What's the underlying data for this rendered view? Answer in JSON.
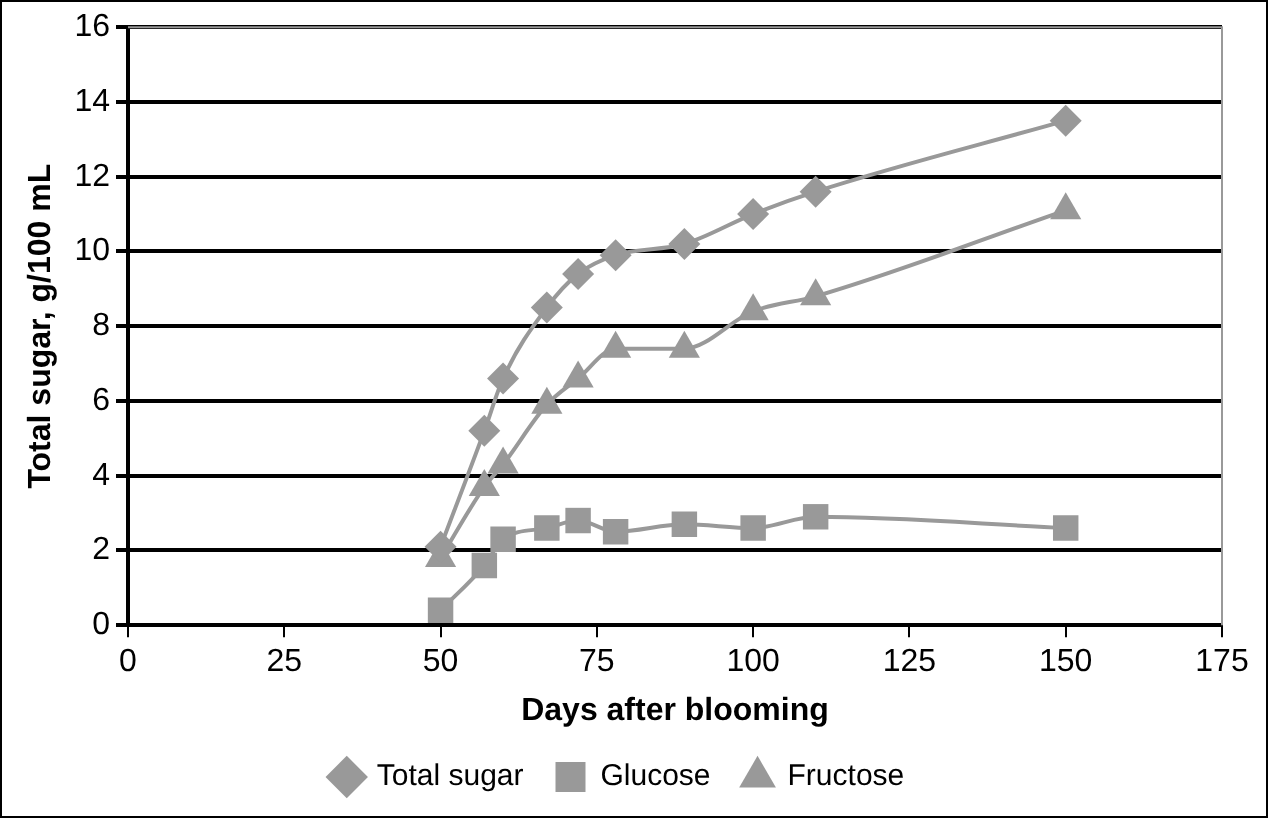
{
  "chart_data": {
    "type": "line",
    "xlabel": "Days after blooming",
    "ylabel": "Total sugar, g/100 mL",
    "x": [
      50,
      57,
      60,
      67,
      72,
      78,
      89,
      100,
      110,
      150
    ],
    "series": [
      {
        "name": "Total sugar",
        "color": "#999999",
        "marker": "diamond",
        "values": [
          2.1,
          5.2,
          6.6,
          8.5,
          9.4,
          9.9,
          10.2,
          11.0,
          11.6,
          13.5
        ]
      },
      {
        "name": "Glucose",
        "color": "#999999",
        "marker": "square",
        "values": [
          0.4,
          1.6,
          2.3,
          2.6,
          2.8,
          2.5,
          2.7,
          2.6,
          2.9,
          2.6
        ]
      },
      {
        "name": "Fructose",
        "color": "#999999",
        "marker": "triangle",
        "values": [
          1.8,
          3.7,
          4.3,
          5.9,
          6.6,
          7.4,
          7.4,
          8.4,
          8.8,
          11.1
        ]
      }
    ],
    "xlim": [
      0,
      175
    ],
    "xticks": [
      0,
      25,
      50,
      75,
      100,
      125,
      150,
      175
    ],
    "ylim": [
      0,
      16
    ],
    "yticks": [
      0,
      2,
      4,
      6,
      8,
      10,
      12,
      14,
      16
    ],
    "grid": "y",
    "legend": "bottom"
  }
}
